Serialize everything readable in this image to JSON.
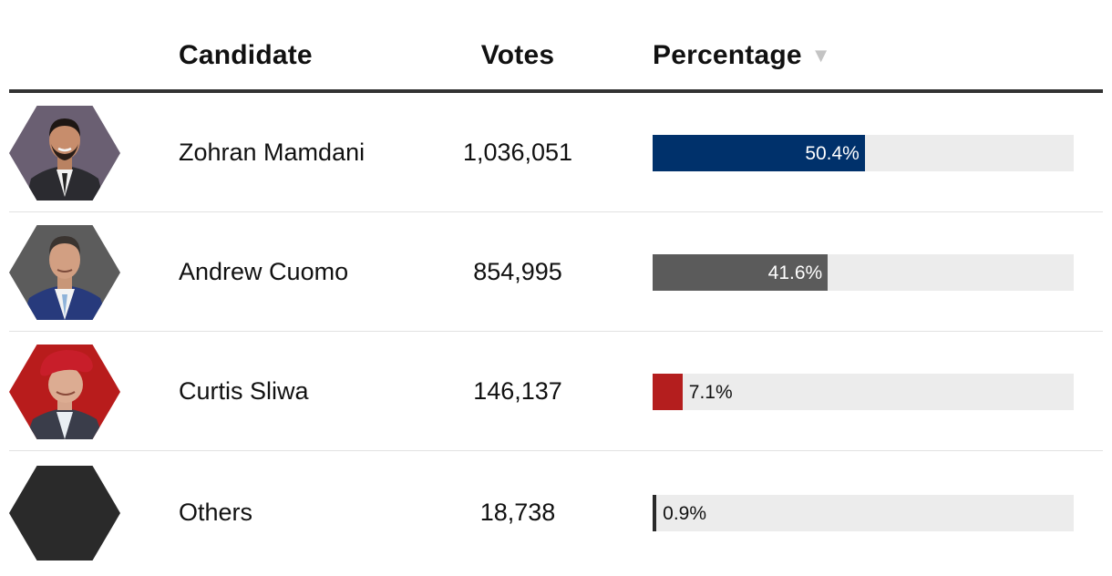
{
  "header": {
    "candidate": "Candidate",
    "votes": "Votes",
    "percentage": "Percentage",
    "sort_arrow": "▼"
  },
  "colors": {
    "mamdani": "#00316b",
    "cuomo": "#5b5b5b",
    "sliwa": "#b41e1e",
    "others": "#2a2a2a",
    "track": "#ececec",
    "header_rule": "#333333"
  },
  "rows": [
    {
      "name": "Zohran Mamdani",
      "votes": "1,036,051",
      "pct_label": "50.4%",
      "pct": 50.4,
      "color": "#00316b",
      "label_inside": true,
      "avatar_icon": "candidate-photo-icon"
    },
    {
      "name": "Andrew Cuomo",
      "votes": "854,995",
      "pct_label": "41.6%",
      "pct": 41.6,
      "color": "#5b5b5b",
      "label_inside": true,
      "avatar_icon": "candidate-photo-icon"
    },
    {
      "name": "Curtis Sliwa",
      "votes": "146,137",
      "pct_label": "7.1%",
      "pct": 7.1,
      "color": "#b41e1e",
      "label_inside": false,
      "avatar_icon": "candidate-photo-icon"
    },
    {
      "name": "Others",
      "votes": "18,738",
      "pct_label": "0.9%",
      "pct": 0.9,
      "color": "#2a2a2a",
      "label_inside": false,
      "avatar_icon": "hexagon-icon"
    }
  ]
}
